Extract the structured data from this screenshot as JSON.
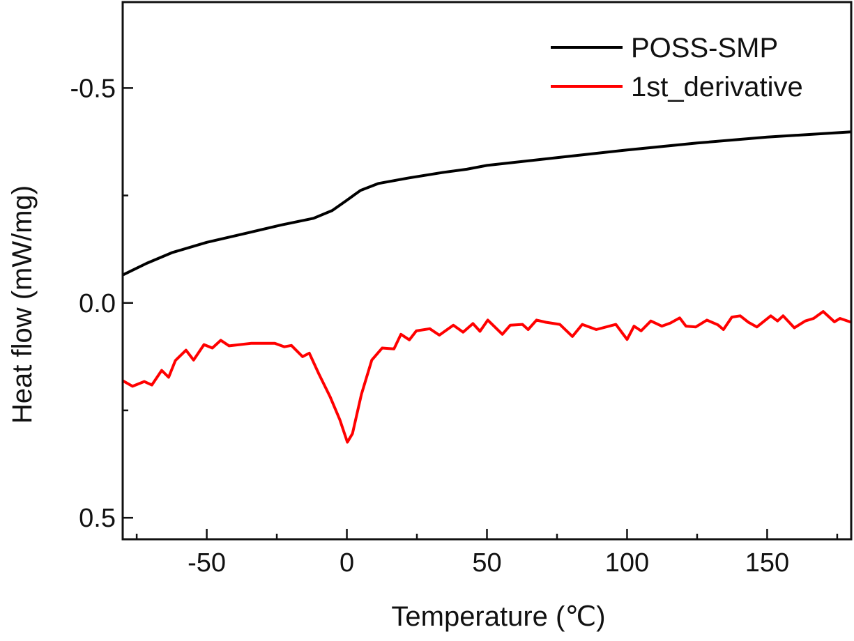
{
  "chart_data": {
    "type": "line",
    "title": "",
    "xlabel": "Temperature (℃)",
    "ylabel": "Heat flow (mW/mg)",
    "xlim": [
      -80,
      180
    ],
    "ylim": [
      -0.7,
      0.55
    ],
    "y_inverted": true,
    "grid": false,
    "legend_position": "top-right",
    "x_ticks": [
      -50,
      0,
      50,
      100,
      150
    ],
    "x_tick_labels": [
      "-50",
      "0",
      "50",
      "100",
      "150"
    ],
    "x_minor_ticks": [
      -75,
      -25,
      25,
      75,
      125,
      175
    ],
    "y_ticks": [
      -0.5,
      0.0,
      0.5
    ],
    "y_tick_labels": [
      "-0.5",
      "0.0",
      "0.5"
    ],
    "y_minor_ticks": [
      -0.25,
      0.25
    ],
    "series": [
      {
        "name": "POSS-SMP",
        "color": "#000000",
        "x": [
          -80,
          -71.5,
          -62.4,
          -50,
          -36,
          -23.6,
          -11.9,
          -5.2,
          -0.2,
          4.9,
          11.3,
          22.2,
          34.6,
          42.8,
          50,
          75,
          100,
          125,
          150,
          180
        ],
        "y": [
          -0.065,
          -0.092,
          -0.117,
          -0.141,
          -0.162,
          -0.181,
          -0.197,
          -0.215,
          -0.238,
          -0.262,
          -0.278,
          -0.291,
          -0.304,
          -0.311,
          -0.32,
          -0.338,
          -0.356,
          -0.372,
          -0.386,
          -0.398
        ]
      },
      {
        "name": "1st_derivative",
        "color": "#ff0000",
        "x": [
          -80,
          -76.5,
          -72.3,
          -69.6,
          -66.1,
          -63.6,
          -61.2,
          -57.4,
          -54.7,
          -51,
          -48,
          -45,
          -42,
          -34,
          -25.7,
          -22.3,
          -19.8,
          -15.8,
          -13.4,
          -10,
          -6,
          -2.5,
          0.2,
          2,
          5.2,
          8.9,
          12.6,
          16.8,
          19.3,
          22.3,
          24.8,
          29.6,
          33,
          38,
          41.5,
          45,
          47.5,
          50.3,
          55.5,
          58.3,
          62.7,
          64.7,
          67.7,
          71,
          76,
          80.5,
          84,
          89,
          96,
          100,
          102.5,
          105,
          108.5,
          112.4,
          115.4,
          118.8,
          121,
          124.5,
          128.5,
          132.4,
          134.4,
          137.4,
          140.4,
          143.3,
          146.3,
          151.3,
          153.7,
          155.7,
          159.7,
          163.6,
          166.6,
          170,
          174,
          176,
          180
        ],
        "y": [
          0.181,
          0.194,
          0.183,
          0.191,
          0.157,
          0.173,
          0.134,
          0.11,
          0.133,
          0.097,
          0.105,
          0.087,
          0.1,
          0.094,
          0.094,
          0.102,
          0.099,
          0.125,
          0.117,
          0.165,
          0.218,
          0.272,
          0.324,
          0.304,
          0.213,
          0.133,
          0.105,
          0.107,
          0.073,
          0.086,
          0.065,
          0.06,
          0.075,
          0.052,
          0.068,
          0.048,
          0.066,
          0.04,
          0.073,
          0.052,
          0.05,
          0.062,
          0.04,
          0.045,
          0.05,
          0.078,
          0.05,
          0.062,
          0.05,
          0.085,
          0.054,
          0.065,
          0.042,
          0.054,
          0.047,
          0.035,
          0.054,
          0.056,
          0.04,
          0.051,
          0.062,
          0.033,
          0.03,
          0.045,
          0.056,
          0.03,
          0.042,
          0.03,
          0.058,
          0.042,
          0.036,
          0.02,
          0.044,
          0.036,
          0.045
        ]
      }
    ]
  }
}
